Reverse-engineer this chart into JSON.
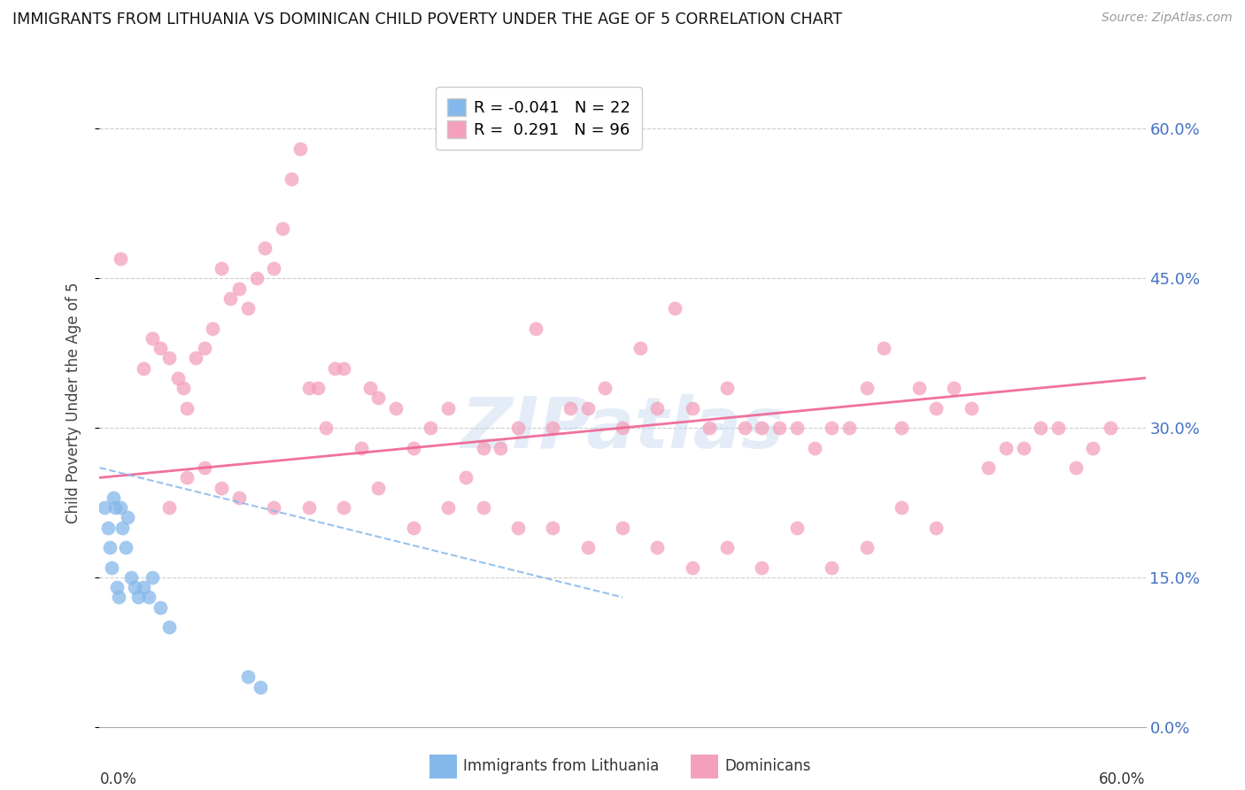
{
  "title": "IMMIGRANTS FROM LITHUANIA VS DOMINICAN CHILD POVERTY UNDER THE AGE OF 5 CORRELATION CHART",
  "source": "Source: ZipAtlas.com",
  "ylabel": "Child Poverty Under the Age of 5",
  "ytick_labels": [
    "0.0%",
    "15.0%",
    "30.0%",
    "45.0%",
    "60.0%"
  ],
  "ytick_values": [
    0,
    15,
    30,
    45,
    60
  ],
  "xlim": [
    0,
    60
  ],
  "ylim": [
    0,
    65
  ],
  "legend_label1": "Immigrants from Lithuania",
  "legend_label2": "Dominicans",
  "watermark": "ZIPatlas",
  "blue_color": "#85B8EA",
  "pink_color": "#F4A0BC",
  "blue_line_color": "#85B8EA",
  "pink_line_color": "#F06292",
  "blue_R": -0.041,
  "blue_N": 22,
  "pink_R": 0.291,
  "pink_N": 96,
  "blue_scatter_x": [
    0.3,
    0.5,
    0.6,
    0.7,
    0.8,
    0.9,
    1.0,
    1.1,
    1.2,
    1.3,
    1.5,
    1.6,
    1.8,
    2.0,
    2.2,
    2.5,
    2.8,
    3.0,
    3.5,
    4.0,
    8.5,
    9.2
  ],
  "blue_scatter_y": [
    22,
    20,
    18,
    16,
    23,
    22,
    14,
    13,
    22,
    20,
    18,
    21,
    15,
    14,
    13,
    14,
    13,
    15,
    12,
    10,
    5,
    4
  ],
  "pink_scatter_x": [
    1.2,
    2.5,
    3.0,
    3.5,
    4.0,
    4.5,
    4.8,
    5.0,
    5.5,
    6.0,
    6.5,
    7.0,
    7.5,
    8.0,
    8.5,
    9.0,
    9.5,
    10.0,
    10.5,
    11.0,
    11.5,
    12.0,
    12.5,
    13.0,
    13.5,
    14.0,
    15.0,
    15.5,
    16.0,
    17.0,
    18.0,
    19.0,
    20.0,
    21.0,
    22.0,
    23.0,
    24.0,
    25.0,
    26.0,
    27.0,
    28.0,
    29.0,
    30.0,
    31.0,
    32.0,
    33.0,
    34.0,
    35.0,
    36.0,
    37.0,
    38.0,
    39.0,
    40.0,
    41.0,
    42.0,
    43.0,
    44.0,
    45.0,
    46.0,
    47.0,
    48.0,
    49.0,
    50.0,
    51.0,
    52.0,
    53.0,
    54.0,
    55.0,
    56.0,
    57.0,
    58.0,
    4.0,
    5.0,
    6.0,
    7.0,
    8.0,
    10.0,
    12.0,
    14.0,
    16.0,
    18.0,
    20.0,
    22.0,
    24.0,
    26.0,
    28.0,
    30.0,
    32.0,
    34.0,
    36.0,
    38.0,
    40.0,
    42.0,
    44.0,
    46.0,
    48.0
  ],
  "pink_scatter_y": [
    47,
    36,
    39,
    38,
    37,
    35,
    34,
    32,
    37,
    38,
    40,
    46,
    43,
    44,
    42,
    45,
    48,
    46,
    50,
    55,
    58,
    34,
    34,
    30,
    36,
    36,
    28,
    34,
    33,
    32,
    28,
    30,
    32,
    25,
    28,
    28,
    30,
    40,
    30,
    32,
    32,
    34,
    30,
    38,
    32,
    42,
    32,
    30,
    34,
    30,
    30,
    30,
    30,
    28,
    30,
    30,
    34,
    38,
    30,
    34,
    32,
    34,
    32,
    26,
    28,
    28,
    30,
    30,
    26,
    28,
    30,
    22,
    25,
    26,
    24,
    23,
    22,
    22,
    22,
    24,
    20,
    22,
    22,
    20,
    20,
    18,
    20,
    18,
    16,
    18,
    16,
    20,
    16,
    18,
    22,
    20
  ]
}
